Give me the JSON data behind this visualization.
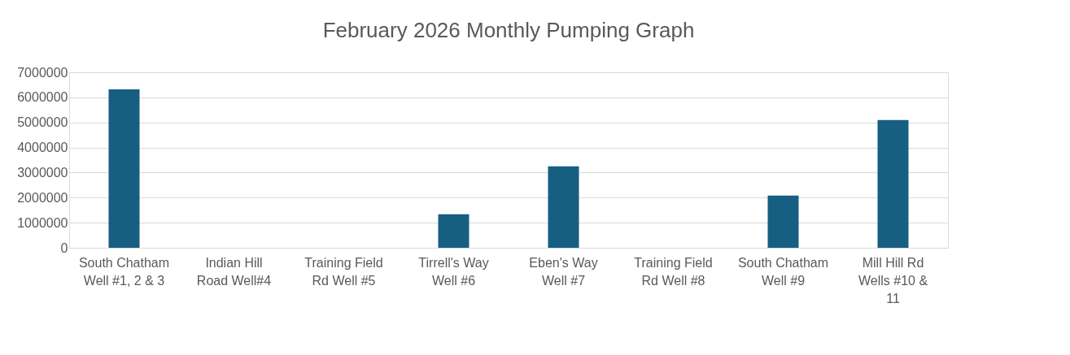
{
  "chart_data": {
    "type": "bar",
    "title": "February 2026 Monthly Pumping Graph",
    "categories": [
      "South Chatham Well #1, 2 & 3",
      "Indian Hill Road Well#4",
      "Training Field Rd Well #5",
      "Tirrell's Way Well #6",
      "Eben's Way Well #7",
      "Training Field Rd Well #8",
      "South Chatham Well #9",
      "Mill Hill Rd Wells  #10 & 11"
    ],
    "values": [
      6320000,
      0,
      0,
      1340000,
      3250000,
      0,
      2080000,
      5100000
    ],
    "color": "#165e82",
    "ylim": [
      0,
      7000000
    ],
    "yticks": [
      0,
      1000000,
      2000000,
      3000000,
      4000000,
      5000000,
      6000000,
      7000000
    ],
    "grid": "y"
  }
}
